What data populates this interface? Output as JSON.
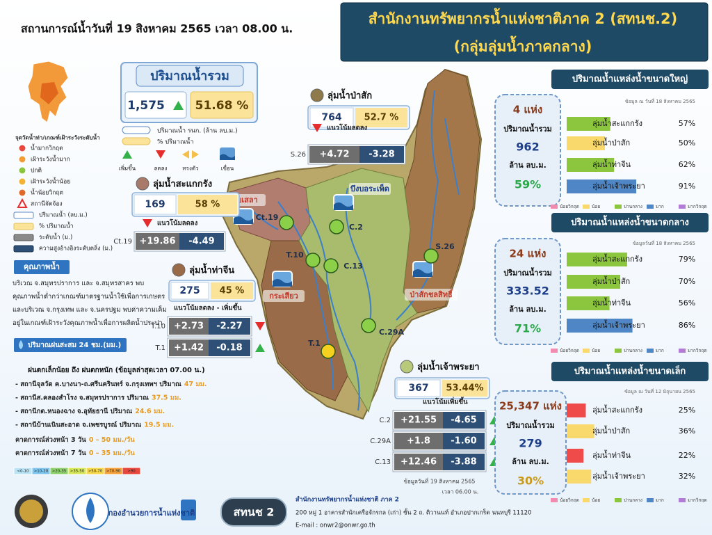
{
  "header": {
    "title": "สถานการณ์น้ำวันที่ 19 สิงหาคม 2565 เวลา 08.00 น.",
    "office": "สำนักงานทรัพยากรน้ำแห่งชาติภาค 2 (สทนช.2)",
    "group": "(กลุ่มลุ่มน้ำภาคกลาง)"
  },
  "total": {
    "title": "ปริมาณน้ำรวม",
    "volume": "1,575",
    "percent": "51.68 %"
  },
  "legend": {
    "volume": "ปริมาณน้ำ รนก. (ล้าน ลบ.ม.)",
    "percent": "% ปริมาณน้ำ",
    "up": "เพิ่มขึ้น",
    "down": "ลดลง",
    "steady": "ทรงตัว",
    "dam": "เขื่อน"
  },
  "station_legend": {
    "title": "จุดวัดน้ำท่า/เกณฑ์เฝ้าระวังระดับน้ำ",
    "items": [
      "น้ำมากวิกฤต",
      "เฝ้าระวังน้ำมาก",
      "ปกติ",
      "เฝ้าระวังน้ำน้อย",
      "น้ำน้อยวิกฤต",
      "สถานีจัดจ้อง"
    ],
    "keys": [
      "ปริมาณน้ำ (ลบ.ม.)",
      "% ปริมาณน้ำ",
      "ระดับน้ำ (ม.)",
      "ความสูงอ้างอิงระดับตลิ่ง (ม.)"
    ]
  },
  "quality": {
    "title": "คุณภาพน้ำ",
    "text": "บริเวณ จ.สมุทรปราการ และ จ.สมุทรสาคร พบคุณภาพน้ำต่ำกว่าเกณฑ์มาตรฐานน้ำใช้เพื่อการเกษตร และบริเวณ จ.กรุงเทพ และ จ.นครปฐม พบค่าความเค็ม อยู่ในเกณฑ์เฝ้าระวังคุณภาพน้ำเพื่อการผลิตน้ำประปา"
  },
  "rain": {
    "title": "ปริมาณฝนสะสม 24 ชม.(มม.)",
    "summary": "ฝนตกเล็กน้อย ถึง ฝนตกหนัก (ข้อมูลล่าสุดเวลา 07.00 น.)",
    "stations": [
      {
        "text": "- สถานีจุลวัด ค.บางนา-ถ.ศรีนครินทร์ จ.กรุงเทพฯ ปริมาณ",
        "amount": "47 มม."
      },
      {
        "text": "- สถานีส.คลองสำโรง จ.สมุทรปราการ ปริมาณ",
        "amount": "37.5 มม."
      },
      {
        "text": "- สถานีกต.หนองฉาง จ.อุทัยธานี ปริมาณ",
        "amount": "24.6 มม."
      },
      {
        "text": "- สถานีบ้านเนินสะอาด จ.เพชรบูรณ์ ปริมาณ",
        "amount": "19.5 มม."
      }
    ],
    "forecasts": [
      {
        "text": "คาดการณ์ล่วงหน้า 3 วัน",
        "amount": "0 – 50 มม./วัน"
      },
      {
        "text": "คาดการณ์ล่วงหน้า 7 วัน",
        "amount": "0 – 35 มม./วัน"
      }
    ],
    "scale": [
      {
        "label": "<0-10",
        "color": "#b9e4f6"
      },
      {
        "label": ">10-20",
        "color": "#7fc6ee"
      },
      {
        "label": ">20-35",
        "color": "#8fd06f"
      },
      {
        "label": ">35-50",
        "color": "#d6e85a"
      },
      {
        "label": ">50-70",
        "color": "#f7d84a"
      },
      {
        "label": ">70-90",
        "color": "#f3a13a"
      },
      {
        "label": ">90",
        "color": "#e8483b"
      }
    ]
  },
  "basins": [
    {
      "name": "ลุ่มน้ำสะแกกรัง",
      "volume": "169",
      "percent": "58 %",
      "trend_label": "แนวโน้มลดลง",
      "trend": "down",
      "stations": [
        {
          "id": "Ct.19",
          "level": "+19.86",
          "bank": "-4.49",
          "trend": "none"
        }
      ]
    },
    {
      "name": "ลุ่มน้ำท่าจีน",
      "volume": "275",
      "percent": "45 %",
      "trend_label": "แนวโน้มลดลง  -  เพิ่มขึ้น",
      "trend": "none",
      "stations": [
        {
          "id": "T.10",
          "level": "+2.73",
          "bank": "-2.27",
          "trend": "down"
        },
        {
          "id": "T.1",
          "level": "+1.42",
          "bank": "-0.18",
          "trend": "up"
        }
      ]
    },
    {
      "name": "ลุ่มน้ำป่าสัก",
      "volume": "764",
      "percent": "52.7 %",
      "trend_label": "แนวโน้มลดลง",
      "trend": "down",
      "stations": [
        {
          "id": "S.26",
          "level": "+4.72",
          "bank": "-3.28",
          "trend": "none"
        }
      ]
    },
    {
      "name": "ลุ่มน้ำเจ้าพระยา",
      "volume": "367",
      "percent": "53.44%",
      "trend_label": "แนวโน้มเพิ่มขึ้น",
      "trend": "none",
      "stations": [
        {
          "id": "C.2",
          "level": "+21.55",
          "bank": "-4.65",
          "trend": "up"
        },
        {
          "id": "C.29A",
          "level": "+1.8",
          "bank": "-1.60",
          "trend": "up"
        },
        {
          "id": "C.13",
          "level": "+12.46",
          "bank": "-3.88",
          "trend": "up"
        }
      ],
      "date": "ข้อมูลวันที่ 19 สิงหาคม 2565",
      "time": "เวลา 06.00 น."
    }
  ],
  "map_labels": {
    "dams": [
      "ทับเสลา",
      "บึงบอระเพ็ด",
      "กระเสียว",
      "ป่าสักชลสิทธิ์"
    ],
    "stations": [
      "Ct.19",
      "C.2",
      "T.10",
      "C.13",
      "S.26",
      "C.29A",
      "T.1"
    ]
  },
  "reservoirs": [
    {
      "title": "ปริมาณน้ำแหล่งน้ำขนาดใหญ่",
      "date": "ข้อมูล ณ วันที่ 18 สิงหาคม 2565",
      "count": "4 แห่ง",
      "total_label": "ปริมาณน้ำรวม",
      "volume": "962",
      "unit": "ล้าน ลบ.ม.",
      "percent": "59%",
      "items": [
        {
          "name": "ลุ่มน้ำสะแกกรัง",
          "value": 57,
          "label": "57%",
          "color": "#8cc63f"
        },
        {
          "name": "ลุ่มน้ำป่าสัก",
          "value": 50,
          "label": "50%",
          "color": "#f9d96b"
        },
        {
          "name": "ลุ่มน้ำท่าจีน",
          "value": 62,
          "label": "62%",
          "color": "#8cc63f"
        },
        {
          "name": "ลุ่มน้ำเจ้าพระยา",
          "value": 91,
          "label": "91%",
          "color": "#4f86c6"
        }
      ]
    },
    {
      "title": "ปริมาณน้ำแหล่งน้ำขนาดกลาง",
      "date": "ข้อมูลวันที่ 18 สิงหาคม 2565",
      "count": "24 แห่ง",
      "total_label": "ปริมาณน้ำรวม",
      "volume": "333.52",
      "unit": "ล้าน ลบ.ม.",
      "percent": "71%",
      "items": [
        {
          "name": "ลุ่มน้ำสะแกกรัง",
          "value": 79,
          "label": "79%",
          "color": "#8cc63f"
        },
        {
          "name": "ลุ่มน้ำป่าสัก",
          "value": 70,
          "label": "70%",
          "color": "#8cc63f"
        },
        {
          "name": "ลุ่มน้ำท่าจีน",
          "value": 56,
          "label": "56%",
          "color": "#8cc63f"
        },
        {
          "name": "ลุ่มน้ำเจ้าพระยา",
          "value": 86,
          "label": "86%",
          "color": "#4f86c6"
        }
      ]
    },
    {
      "title": "ปริมาณน้ำแหล่งน้ำขนาดเล็ก",
      "date": "ข้อมูล ณ วันที่ 12 มิถุนายน 2565",
      "count": "25,347 แห่ง",
      "total_label": "ปริมาณน้ำรวม",
      "volume": "279",
      "unit": "ล้าน ลบ.ม.",
      "percent": "30%",
      "items": [
        {
          "name": "ลุ่มน้ำสะแกกรัง",
          "value": 25,
          "label": "25%",
          "color": "#ef4b4b"
        },
        {
          "name": "ลุ่มน้ำป่าสัก",
          "value": 36,
          "label": "36%",
          "color": "#f9d96b"
        },
        {
          "name": "ลุ่มน้ำท่าจีน",
          "value": 22,
          "label": "22%",
          "color": "#ef4b4b"
        },
        {
          "name": "ลุ่มน้ำเจ้าพระยา",
          "value": 32,
          "label": "32%",
          "color": "#f9d96b"
        }
      ]
    }
  ],
  "reservoir_legend": [
    {
      "label": "น้อยวิกฤต",
      "color": "#f28bb0"
    },
    {
      "label": "น้อย",
      "color": "#f9d96b"
    },
    {
      "label": "ปานกลาง",
      "color": "#8cc63f"
    },
    {
      "label": "มาก",
      "color": "#4f86c6"
    },
    {
      "label": "มากวิกฤต",
      "color": "#b27cd6"
    }
  ],
  "footer": {
    "agency": "กองอำนวยการน้ำแห่งชาติ",
    "badge": "สทนช 2",
    "office": "สำนักงานทรัพยากรน้ำแห่งชาติ ภาค 2",
    "address": "200 หมู่ 1 อาคารสำนักเครือจักรกล (เก่า) ชั้น 2 ถ. ติวานนท์ อำเภอปากเกร็ด นนทบุรี 11120",
    "email": "E-mail : onwr2@onwr.go.th"
  }
}
